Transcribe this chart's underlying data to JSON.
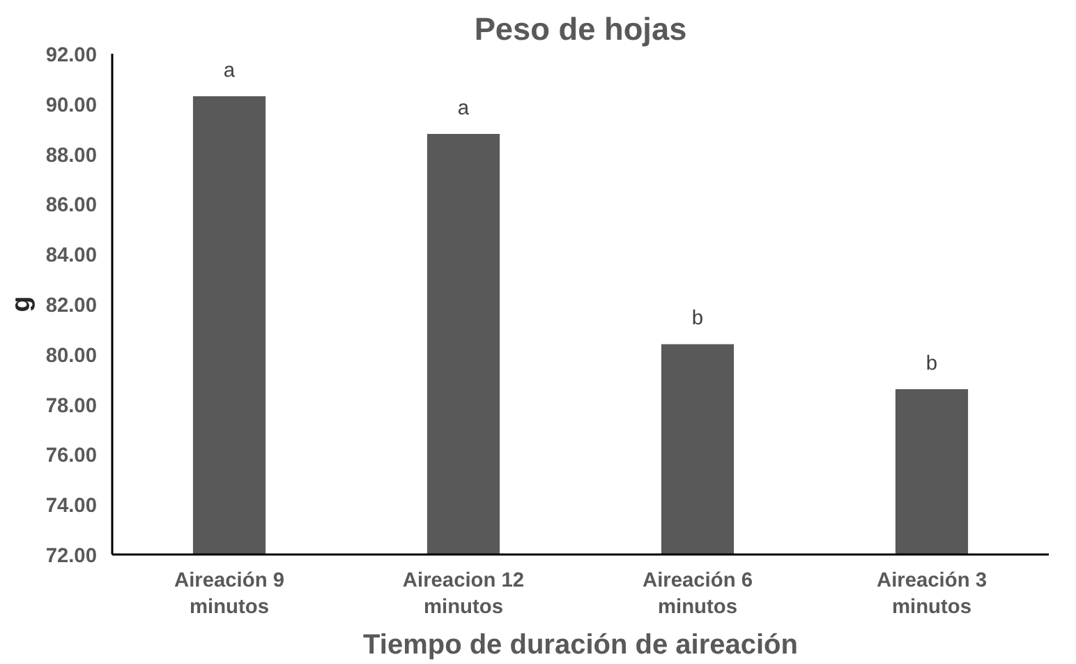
{
  "chart_data": {
    "type": "bar",
    "title": "Peso de hojas",
    "xlabel": "Tiempo de duración de aireación",
    "ylabel": "g",
    "categories": [
      "Aireación 9\nminutos",
      "Aireacion 12\nminutos",
      "Aireación 6\nminutos",
      "Aireación 3\nminutos"
    ],
    "values": [
      90.3,
      88.8,
      80.4,
      78.6
    ],
    "color": "#595959",
    "ylim": [
      72,
      92
    ],
    "yticks": [
      {
        "value": 72,
        "label": "72.00"
      },
      {
        "value": 74,
        "label": "74.00"
      },
      {
        "value": 76,
        "label": "76.00"
      },
      {
        "value": 78,
        "label": "78.00"
      },
      {
        "value": 80,
        "label": "80.00"
      },
      {
        "value": 82,
        "label": "82.00"
      },
      {
        "value": 84,
        "label": "84.00"
      },
      {
        "value": 86,
        "label": "86.00"
      },
      {
        "value": 88,
        "label": "88.00"
      },
      {
        "value": 90,
        "label": "90.00"
      },
      {
        "value": 92,
        "label": "92.00"
      }
    ],
    "annotations": [
      {
        "text": "a",
        "x": "Aireación 9\nminutos",
        "y": 90.3
      },
      {
        "text": "a",
        "x": "Aireacion 12\nminutos",
        "y": 88.8
      },
      {
        "text": "b",
        "x": "Aireación 6\nminutos",
        "y": 80.4
      },
      {
        "text": "b",
        "x": "Aireación 3\nminutos",
        "y": 78.6
      }
    ],
    "grid": false
  }
}
